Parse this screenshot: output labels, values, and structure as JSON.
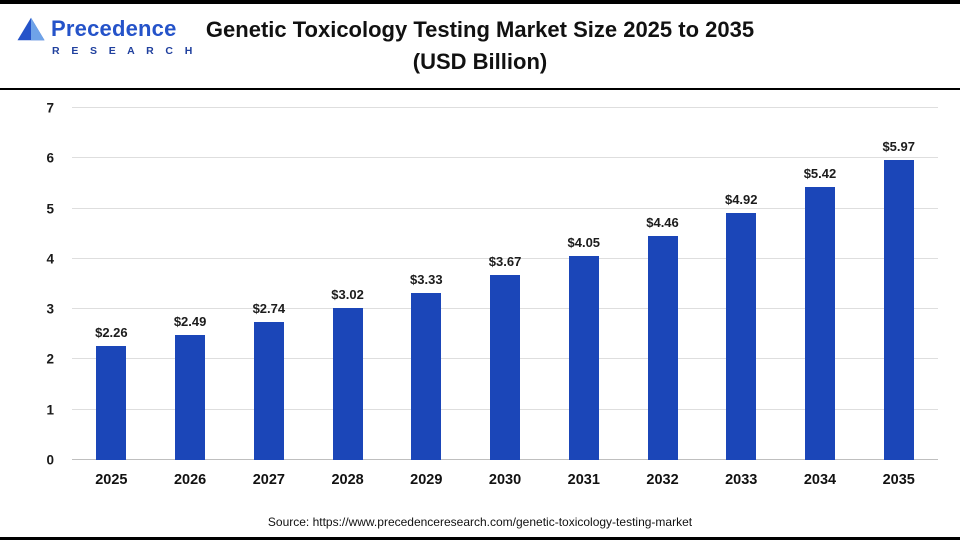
{
  "header": {
    "logo_name": "Precedence",
    "logo_subtitle": "R E S E A R C H",
    "title_line1": "Genetic Toxicology Testing Market Size 2025 to 2035",
    "title_line2": "(USD Billion)"
  },
  "chart_data": {
    "type": "bar",
    "title": "Genetic Toxicology Testing Market Size 2025 to 2035 (USD Billion)",
    "categories": [
      "2025",
      "2026",
      "2027",
      "2028",
      "2029",
      "2030",
      "2031",
      "2032",
      "2033",
      "2034",
      "2035"
    ],
    "values": [
      2.26,
      2.49,
      2.74,
      3.02,
      3.33,
      3.67,
      4.05,
      4.46,
      4.92,
      5.42,
      5.97
    ],
    "value_labels": [
      "$2.26",
      "$2.49",
      "$2.74",
      "$3.02",
      "$3.33",
      "$3.67",
      "$4.05",
      "$4.46",
      "$4.92",
      "$5.42",
      "$5.97"
    ],
    "xlabel": "",
    "ylabel": "",
    "ylim": [
      0,
      7
    ],
    "yticks": [
      0,
      1,
      2,
      3,
      4,
      5,
      6,
      7
    ],
    "grid": true,
    "legend": "none",
    "bar_color": "#1b46b8"
  },
  "footer": {
    "source": "Source: https://www.precedenceresearch.com/genetic-toxicology-testing-market"
  },
  "colors": {
    "accent_blue": "#1b46b8",
    "logo_blue": "#2553c9",
    "logo_navy": "#20409e"
  }
}
